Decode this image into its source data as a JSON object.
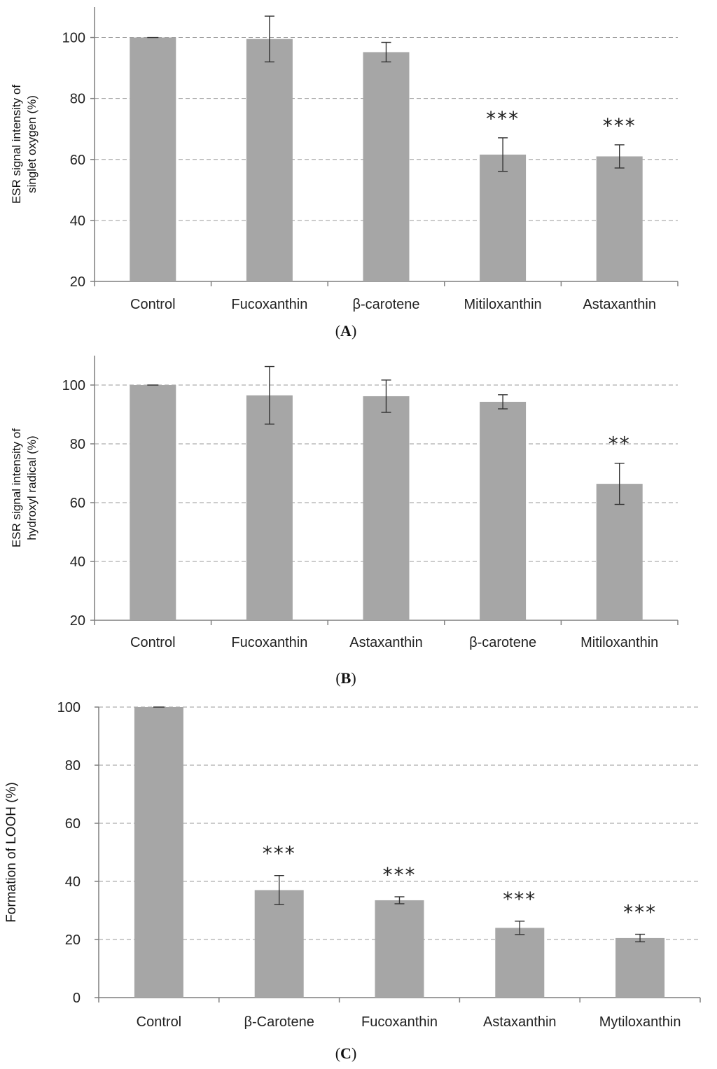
{
  "chart_data": [
    {
      "type": "bar",
      "panel_label": "A",
      "ylabel_lines": [
        "ESR signal intensity of",
        "singlet oxygen (%)"
      ],
      "categories": [
        "Control",
        "Fucoxanthin",
        "β-carotene",
        "Mitiloxanthin",
        "Astaxanthin"
      ],
      "values": [
        100,
        99.5,
        95.2,
        61.6,
        61.0
      ],
      "errors": [
        0,
        7.5,
        3.2,
        5.5,
        3.8
      ],
      "significance": [
        "",
        "",
        "",
        "***",
        "***"
      ],
      "yticks": [
        "20",
        "40",
        "60",
        "80",
        "100"
      ],
      "ylim": [
        20,
        110
      ]
    },
    {
      "type": "bar",
      "panel_label": "B",
      "ylabel_lines": [
        "ESR signal intensity of",
        "hydroxyl radical (%)"
      ],
      "categories": [
        "Control",
        "Fucoxanthin",
        "Astaxanthin",
        "β-carotene",
        "Mitiloxanthin"
      ],
      "values": [
        100,
        96.5,
        96.2,
        94.3,
        66.4
      ],
      "errors": [
        0,
        9.8,
        5.5,
        2.4,
        7.0
      ],
      "significance": [
        "",
        "",
        "",
        "",
        "**"
      ],
      "yticks": [
        "20",
        "40",
        "60",
        "80",
        "100"
      ],
      "ylim": [
        20,
        110
      ]
    },
    {
      "type": "bar",
      "panel_label": "C",
      "ylabel_lines": [
        "Formation of  LOOH (%)"
      ],
      "categories": [
        "Control",
        "β-Carotene",
        "Fucoxanthin",
        "Astaxanthin",
        "Mytiloxanthin"
      ],
      "values": [
        100,
        37.0,
        33.5,
        24.0,
        20.5
      ],
      "errors": [
        0,
        5.0,
        1.2,
        2.3,
        1.3
      ],
      "significance": [
        "",
        "***",
        "***",
        "***",
        "***"
      ],
      "yticks": [
        "0",
        "20",
        "40",
        "60",
        "80",
        "100"
      ],
      "ylim": [
        0,
        100
      ]
    }
  ]
}
